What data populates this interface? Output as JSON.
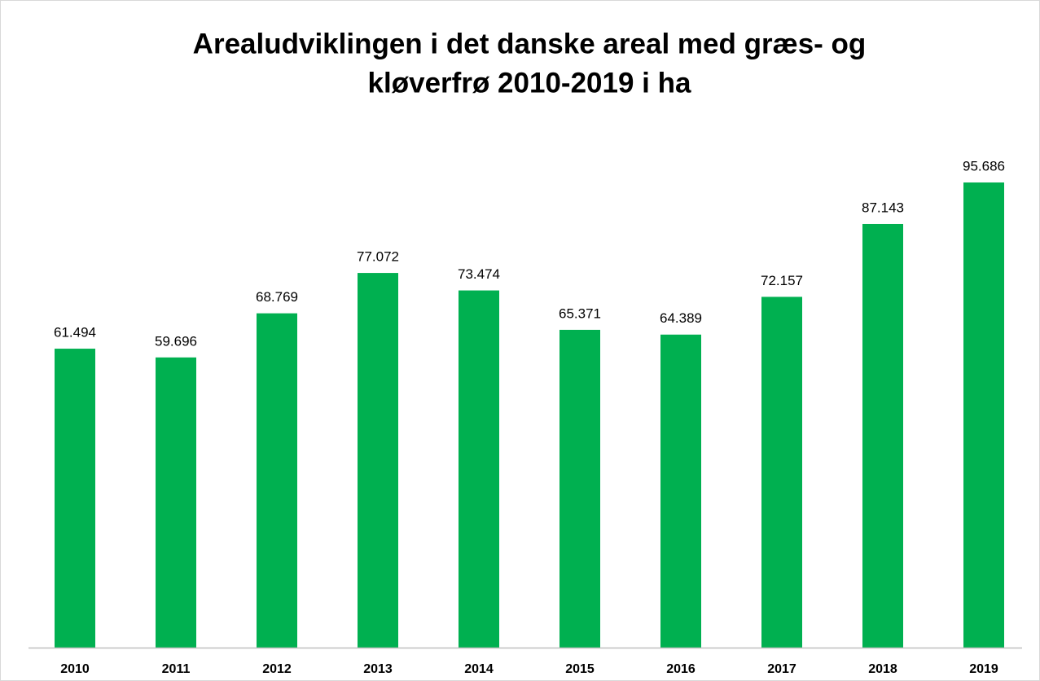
{
  "chart_data": {
    "type": "bar",
    "title": [
      "Arealudviklingen i det danske areal med græs- og",
      "kløverfrø 2010-2019 i ha"
    ],
    "categories": [
      "2010",
      "2011",
      "2012",
      "2013",
      "2014",
      "2015",
      "2016",
      "2017",
      "2018",
      "2019"
    ],
    "values": [
      61494,
      59696,
      68769,
      77072,
      73474,
      65371,
      64389,
      72157,
      87143,
      95686
    ],
    "value_labels": [
      "61.494",
      "59.696",
      "68.769",
      "77.072",
      "73.474",
      "65.371",
      "64.389",
      "72.157",
      "87.143",
      "95.686"
    ],
    "color": "#00b050"
  }
}
